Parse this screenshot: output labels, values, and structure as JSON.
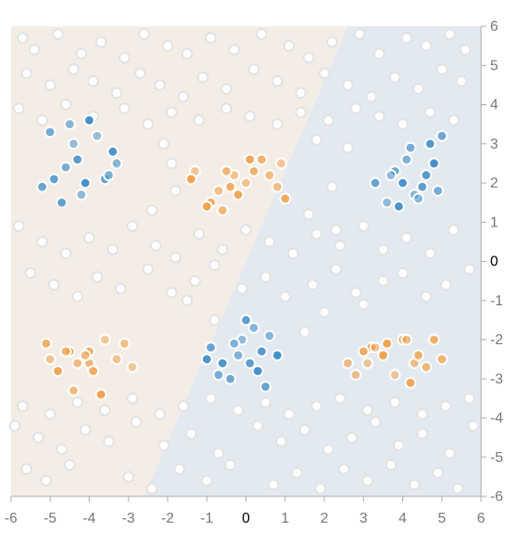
{
  "chart_data": {
    "type": "scatter",
    "title": "",
    "xlabel": "",
    "ylabel": "",
    "xlim": [
      -6,
      6
    ],
    "ylim": [
      -6,
      6
    ],
    "x_ticks": [
      "-6",
      "-5",
      "-4",
      "-3",
      "-2",
      "-1",
      "0",
      "1",
      "2",
      "3",
      "4",
      "5",
      "6"
    ],
    "y_ticks": [
      "6",
      "5",
      "4",
      "3",
      "2",
      "1",
      "0",
      "-1",
      "-2",
      "-3",
      "-4",
      "-5",
      "-6"
    ],
    "grid": false,
    "legend": "none",
    "colors": {
      "orange_point": "#f0a04a",
      "blue_point": "#3d8cc8",
      "white_point_stroke": "#e2e2e2",
      "orange_region": "#f4ede6",
      "blue_region": "#e3e9f0",
      "axis": "#aaaaaa"
    },
    "series": [
      {
        "class": "orange",
        "x": [
          -1.3,
          -0.9,
          -0.6,
          -0.3,
          0.1,
          0.2,
          -0.7,
          -1.0,
          -0.4,
          0.6,
          0.9,
          1.0,
          -0.5,
          0.0,
          -0.2,
          0.4,
          0.8,
          -1.4,
          -4.0,
          -4.3,
          -3.6,
          -4.5,
          -4.0,
          -3.3,
          -4.8,
          -4.6,
          -3.1,
          -3.7,
          -5.1,
          -4.4,
          -2.9,
          -3.9,
          -4.1,
          -5.0,
          3.2,
          4.0,
          4.3,
          3.5,
          4.8,
          2.6,
          3.8,
          3.0,
          4.6,
          3.3,
          4.2,
          5.0,
          2.8,
          3.6,
          4.4,
          4.1,
          3.1
        ],
        "y": [
          2.3,
          1.5,
          1.3,
          2.2,
          2.6,
          2.3,
          1.8,
          1.4,
          1.9,
          2.2,
          2.5,
          1.6,
          2.3,
          2.0,
          1.7,
          2.6,
          1.9,
          2.1,
          -2.3,
          -2.6,
          -2.0,
          -2.3,
          -2.6,
          -2.5,
          -2.8,
          -2.3,
          -2.1,
          -3.4,
          -2.1,
          -3.3,
          -2.7,
          -2.8,
          -2.4,
          -2.5,
          -2.2,
          -2.0,
          -2.6,
          -2.4,
          -2.0,
          -2.6,
          -2.9,
          -2.3,
          -2.7,
          -2.2,
          -3.1,
          -2.5,
          -2.9,
          -2.1,
          -2.4,
          -2.0,
          -2.6
        ]
      },
      {
        "class": "blue",
        "x": [
          -4.4,
          -4.6,
          -4.9,
          -4.1,
          -4.5,
          -3.6,
          -3.4,
          -4.2,
          -5.0,
          -4.3,
          -3.8,
          -3.5,
          -4.7,
          -4.0,
          -3.3,
          -5.2,
          4.0,
          4.3,
          3.8,
          4.6,
          3.6,
          4.2,
          4.5,
          4.8,
          4.1,
          3.3,
          3.9,
          4.4,
          5.0,
          4.7,
          3.7,
          4.9,
          0.1,
          0.3,
          -0.2,
          -0.9,
          -0.6,
          0.2,
          -0.4,
          0.4,
          -0.1,
          -0.7,
          0.0,
          0.8,
          -0.3,
          0.5,
          -1.0,
          0.6
        ],
        "y": [
          3.0,
          2.4,
          2.1,
          2.0,
          3.5,
          2.1,
          2.8,
          1.7,
          3.3,
          2.6,
          3.2,
          2.2,
          1.5,
          3.6,
          2.5,
          1.9,
          2.0,
          1.7,
          2.3,
          2.2,
          1.5,
          2.9,
          1.9,
          2.5,
          2.6,
          2.0,
          1.4,
          1.6,
          3.2,
          3.0,
          2.2,
          1.8,
          -2.6,
          -2.8,
          -2.4,
          -2.2,
          -2.6,
          -1.7,
          -3.0,
          -2.3,
          -2.0,
          -2.9,
          -1.5,
          -2.4,
          -2.1,
          -3.2,
          -2.5,
          -1.9
        ]
      },
      {
        "class": "white",
        "x": [
          -5.7,
          -5.4,
          -4.8,
          -4.2,
          -3.7,
          -3.1,
          -2.6,
          -2.0,
          -1.5,
          -0.9,
          -0.3,
          0.4,
          1.1,
          1.6,
          2.2,
          2.9,
          3.4,
          4.1,
          4.6,
          5.2,
          5.6,
          -5.6,
          -5.0,
          -4.4,
          -3.9,
          -3.3,
          -2.7,
          -2.2,
          -1.6,
          -1.1,
          -0.5,
          0.2,
          0.8,
          1.4,
          2.0,
          2.6,
          3.2,
          3.8,
          4.4,
          5.0,
          5.5,
          -5.8,
          -5.2,
          -4.6,
          -4.0,
          -3.4,
          -2.9,
          -2.3,
          -1.8,
          -1.2,
          -0.6,
          0.0,
          0.6,
          1.2,
          1.8,
          2.4,
          3.0,
          3.5,
          4.1,
          4.7,
          5.3,
          -5.5,
          -4.9,
          -4.3,
          -3.8,
          -3.2,
          -2.5,
          -1.9,
          -1.3,
          -0.8,
          -0.1,
          0.5,
          1.0,
          1.7,
          2.3,
          2.8,
          3.5,
          4.0,
          4.6,
          5.1,
          5.7,
          -5.9,
          -5.3,
          -4.7,
          -4.1,
          -3.5,
          -2.8,
          -2.1,
          -1.4,
          -0.7,
          0.3,
          0.9,
          1.5,
          2.1,
          2.7,
          3.3,
          3.9,
          4.5,
          5.2,
          5.8,
          -5.6,
          -5.1,
          -4.5,
          -3.0,
          -2.4,
          -1.7,
          -1.0,
          -0.4,
          0.7,
          1.3,
          1.9,
          2.5,
          3.1,
          3.7,
          4.3,
          4.9,
          5.4,
          -5.8,
          -5.2,
          -4.6,
          -3.9,
          -3.1,
          -2.5,
          -1.9,
          -1.2,
          -0.5,
          0.1,
          0.8,
          1.4,
          2.1,
          2.8,
          3.4,
          4.0,
          4.7,
          5.3,
          -5.7,
          -5.0,
          -4.3,
          -3.6,
          -2.9,
          -2.2,
          -1.6,
          -0.9,
          -0.2,
          0.5,
          1.1,
          1.8,
          2.4,
          3.1,
          3.8,
          4.5,
          5.1,
          5.7,
          -2.4,
          -1.9,
          -2.1,
          -1.8,
          -1.5,
          -0.8,
          1.6,
          2.3,
          2.0,
          1.5,
          2.6,
          3.0,
          2.2,
          1.8
        ],
        "y": [
          5.7,
          5.4,
          5.8,
          5.3,
          5.6,
          5.2,
          5.8,
          5.5,
          5.3,
          5.7,
          5.4,
          5.8,
          5.5,
          5.2,
          5.6,
          5.8,
          5.3,
          5.7,
          5.5,
          5.8,
          5.4,
          4.8,
          4.5,
          4.9,
          4.6,
          4.3,
          4.8,
          4.5,
          4.2,
          4.7,
          4.4,
          4.9,
          4.6,
          4.3,
          4.8,
          4.5,
          4.2,
          4.7,
          4.4,
          4.9,
          4.6,
          0.9,
          0.5,
          0.2,
          0.6,
          0.3,
          0.9,
          0.4,
          0.1,
          0.7,
          0.3,
          0.8,
          0.5,
          0.2,
          0.7,
          0.4,
          0.9,
          0.3,
          0.6,
          0.2,
          0.8,
          -0.3,
          -0.6,
          -0.9,
          -0.4,
          -0.7,
          -0.2,
          -0.8,
          -0.5,
          -0.1,
          -0.7,
          -0.4,
          -0.9,
          -0.6,
          -0.2,
          -0.8,
          -0.5,
          -0.3,
          -0.9,
          -0.6,
          -0.2,
          -4.2,
          -4.5,
          -4.8,
          -4.3,
          -4.6,
          -4.1,
          -4.7,
          -4.4,
          -4.9,
          -4.2,
          -4.6,
          -4.3,
          -4.8,
          -4.5,
          -4.1,
          -4.7,
          -4.4,
          -4.9,
          -4.2,
          -5.3,
          -5.6,
          -5.2,
          -5.5,
          -5.8,
          -5.3,
          -5.6,
          -5.2,
          -5.7,
          -5.4,
          -5.8,
          -5.3,
          -5.6,
          -5.2,
          -5.7,
          -5.4,
          -5.8,
          3.9,
          3.6,
          4.0,
          3.7,
          3.9,
          3.5,
          3.8,
          3.6,
          3.9,
          3.7,
          3.5,
          3.8,
          3.6,
          3.9,
          3.7,
          3.5,
          3.8,
          3.6,
          -3.7,
          -3.9,
          -3.6,
          -3.8,
          -3.5,
          -3.9,
          -3.7,
          -3.5,
          -3.8,
          -3.6,
          -3.9,
          -3.7,
          -3.5,
          -3.8,
          -3.6,
          -3.9,
          -3.7,
          -3.5,
          1.3,
          2.5,
          3.0,
          1.8,
          -1.0,
          -1.5,
          1.2,
          0.8,
          -1.3,
          -1.8,
          2.9,
          -1.1,
          1.9,
          3.1
        ]
      }
    ],
    "background_regions": [
      {
        "label": "orange",
        "polygon": [
          [
            -6,
            6
          ],
          [
            2.6,
            6
          ],
          [
            -2.6,
            -6
          ],
          [
            -6,
            -6
          ]
        ]
      },
      {
        "label": "blue",
        "polygon": [
          [
            2.6,
            6
          ],
          [
            6,
            6
          ],
          [
            6,
            -6
          ],
          [
            -2.6,
            -6
          ]
        ]
      }
    ]
  }
}
